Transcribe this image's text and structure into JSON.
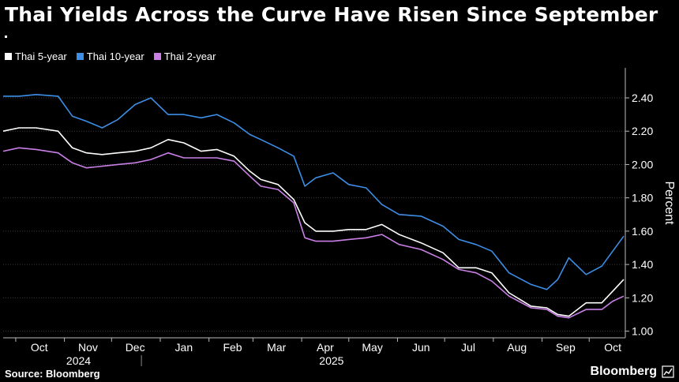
{
  "header": {
    "title": "Thai Yields Across the Curve Have Risen Since September"
  },
  "footer": {
    "source": "Source: Bloomberg",
    "brand": "Bloomberg"
  },
  "chart_data": {
    "type": "line",
    "title": "Thai Yields Across the Curve Have Risen Since September",
    "ylabel": "Percent",
    "ylim": [
      0.96,
      2.58
    ],
    "yticks": [
      1.0,
      1.2,
      1.4,
      1.6,
      1.8,
      2.0,
      2.2,
      2.4
    ],
    "ytick_labels": [
      "1.00",
      "1.20",
      "1.40",
      "1.60",
      "1.80",
      "2.00",
      "2.20",
      "2.40"
    ],
    "xlim": [
      "2024-09-23",
      "2025-10-24"
    ],
    "month_ticks": [
      {
        "date": "2024-10-01",
        "label": "Oct"
      },
      {
        "date": "2024-11-01",
        "label": "Nov"
      },
      {
        "date": "2024-12-01",
        "label": "Dec"
      },
      {
        "date": "2025-01-01",
        "label": "Jan"
      },
      {
        "date": "2025-02-01",
        "label": "Feb"
      },
      {
        "date": "2025-03-01",
        "label": "Mar"
      },
      {
        "date": "2025-04-01",
        "label": "Apr"
      },
      {
        "date": "2025-05-01",
        "label": "May"
      },
      {
        "date": "2025-06-01",
        "label": "Jun"
      },
      {
        "date": "2025-07-01",
        "label": "Jul"
      },
      {
        "date": "2025-08-01",
        "label": "Aug"
      },
      {
        "date": "2025-09-01",
        "label": "Sep"
      },
      {
        "date": "2025-10-01",
        "label": "Oct"
      }
    ],
    "year_labels": [
      {
        "date": "2024-11-10",
        "label": "2024"
      },
      {
        "date": "2025-04-20",
        "label": "2025"
      }
    ],
    "year_divider": "2024-12-20",
    "grid": "y-major",
    "legend_position": "top-left",
    "series": [
      {
        "name": "Thai 5-year",
        "color": "#ffffff",
        "x": [
          "2024-09-23",
          "2024-10-03",
          "2024-10-14",
          "2024-10-28",
          "2024-11-06",
          "2024-11-15",
          "2024-11-25",
          "2024-12-05",
          "2024-12-16",
          "2024-12-26",
          "2025-01-06",
          "2025-01-16",
          "2025-01-27",
          "2025-02-06",
          "2025-02-17",
          "2025-02-27",
          "2025-03-06",
          "2025-03-17",
          "2025-03-27",
          "2025-04-03",
          "2025-04-10",
          "2025-04-21",
          "2025-05-01",
          "2025-05-12",
          "2025-05-22",
          "2025-06-02",
          "2025-06-16",
          "2025-06-30",
          "2025-07-10",
          "2025-07-21",
          "2025-07-31",
          "2025-08-11",
          "2025-08-25",
          "2025-09-04",
          "2025-09-11",
          "2025-09-18",
          "2025-09-29",
          "2025-10-09",
          "2025-10-16",
          "2025-10-23"
        ],
        "y": [
          2.2,
          2.22,
          2.22,
          2.2,
          2.1,
          2.07,
          2.06,
          2.07,
          2.08,
          2.1,
          2.15,
          2.13,
          2.08,
          2.09,
          2.05,
          1.96,
          1.91,
          1.88,
          1.79,
          1.65,
          1.6,
          1.6,
          1.61,
          1.61,
          1.64,
          1.58,
          1.53,
          1.47,
          1.38,
          1.38,
          1.35,
          1.23,
          1.15,
          1.14,
          1.1,
          1.09,
          1.17,
          1.17,
          1.24,
          1.31
        ]
      },
      {
        "name": "Thai 10-year",
        "color": "#3d8ee6",
        "x": [
          "2024-09-23",
          "2024-10-03",
          "2024-10-14",
          "2024-10-28",
          "2024-11-06",
          "2024-11-15",
          "2024-11-25",
          "2024-12-05",
          "2024-12-16",
          "2024-12-26",
          "2025-01-06",
          "2025-01-16",
          "2025-01-27",
          "2025-02-06",
          "2025-02-17",
          "2025-02-27",
          "2025-03-06",
          "2025-03-17",
          "2025-03-27",
          "2025-04-03",
          "2025-04-10",
          "2025-04-21",
          "2025-05-01",
          "2025-05-12",
          "2025-05-22",
          "2025-06-02",
          "2025-06-16",
          "2025-06-30",
          "2025-07-10",
          "2025-07-21",
          "2025-07-31",
          "2025-08-11",
          "2025-08-25",
          "2025-09-04",
          "2025-09-11",
          "2025-09-18",
          "2025-09-29",
          "2025-10-09",
          "2025-10-16",
          "2025-10-23"
        ],
        "y": [
          2.41,
          2.41,
          2.42,
          2.41,
          2.29,
          2.26,
          2.22,
          2.27,
          2.36,
          2.4,
          2.3,
          2.3,
          2.28,
          2.3,
          2.25,
          2.18,
          2.15,
          2.1,
          2.05,
          1.87,
          1.92,
          1.95,
          1.88,
          1.86,
          1.76,
          1.7,
          1.69,
          1.63,
          1.55,
          1.52,
          1.48,
          1.35,
          1.28,
          1.25,
          1.31,
          1.44,
          1.34,
          1.39,
          1.48,
          1.57
        ]
      },
      {
        "name": "Thai 2-year",
        "color": "#c97fe6",
        "x": [
          "2024-09-23",
          "2024-10-03",
          "2024-10-14",
          "2024-10-28",
          "2024-11-06",
          "2024-11-15",
          "2024-11-25",
          "2024-12-05",
          "2024-12-16",
          "2024-12-26",
          "2025-01-06",
          "2025-01-16",
          "2025-01-27",
          "2025-02-06",
          "2025-02-17",
          "2025-02-27",
          "2025-03-06",
          "2025-03-17",
          "2025-03-27",
          "2025-04-03",
          "2025-04-10",
          "2025-04-21",
          "2025-05-01",
          "2025-05-12",
          "2025-05-22",
          "2025-06-02",
          "2025-06-16",
          "2025-06-30",
          "2025-07-10",
          "2025-07-21",
          "2025-07-31",
          "2025-08-11",
          "2025-08-25",
          "2025-09-04",
          "2025-09-11",
          "2025-09-18",
          "2025-09-29",
          "2025-10-09",
          "2025-10-16",
          "2025-10-23"
        ],
        "y": [
          2.08,
          2.1,
          2.09,
          2.07,
          2.01,
          1.98,
          1.99,
          2.0,
          2.01,
          2.03,
          2.07,
          2.04,
          2.04,
          2.04,
          2.02,
          1.93,
          1.87,
          1.85,
          1.77,
          1.56,
          1.54,
          1.54,
          1.55,
          1.56,
          1.58,
          1.52,
          1.49,
          1.43,
          1.37,
          1.35,
          1.3,
          1.21,
          1.14,
          1.13,
          1.09,
          1.08,
          1.13,
          1.13,
          1.18,
          1.21
        ]
      }
    ]
  }
}
